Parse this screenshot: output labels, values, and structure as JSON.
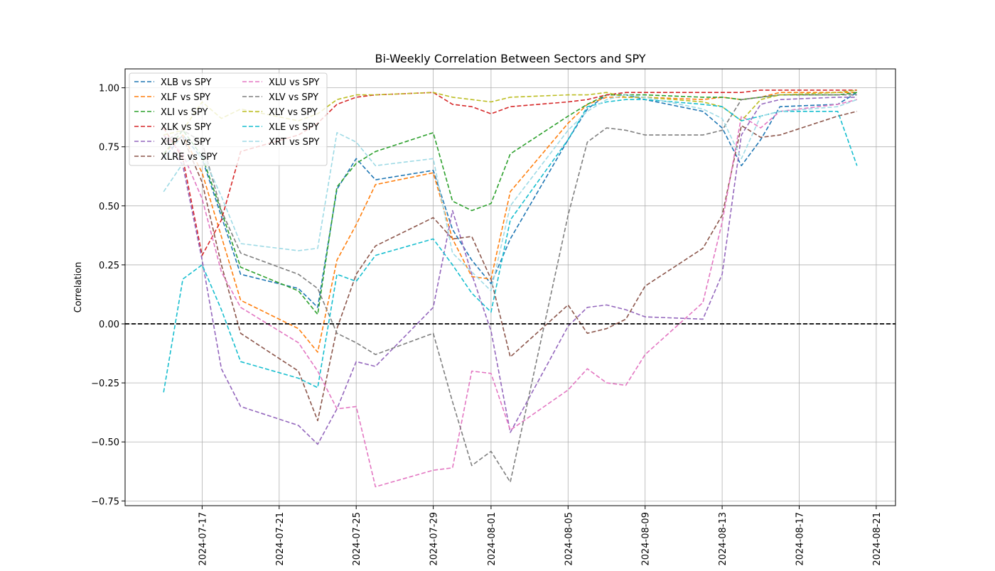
{
  "chart_data": {
    "type": "line",
    "title": "Bi-Weekly Correlation Between Sectors and SPY",
    "xlabel": "",
    "ylabel": "Correlation",
    "grid": true,
    "legend_position": "upper-left",
    "legend_columns": 2,
    "reference_line": {
      "y": 0.0,
      "style": "dashed",
      "color": "#000000"
    },
    "xlim": [
      "2024-07-13",
      "2024-08-22"
    ],
    "ylim": [
      -0.77,
      1.08
    ],
    "x_ticks": [
      "2024-07-17",
      "2024-07-21",
      "2024-07-25",
      "2024-07-29",
      "2024-08-01",
      "2024-08-05",
      "2024-08-09",
      "2024-08-13",
      "2024-08-17",
      "2024-08-21"
    ],
    "y_ticks": [
      "1.00",
      "0.75",
      "0.50",
      "0.25",
      "0.00",
      "−0.25",
      "−0.50",
      "−0.75"
    ],
    "x": [
      "2024-07-15",
      "2024-07-16",
      "2024-07-17",
      "2024-07-18",
      "2024-07-19",
      "2024-07-22",
      "2024-07-23",
      "2024-07-24",
      "2024-07-25",
      "2024-07-26",
      "2024-07-29",
      "2024-07-30",
      "2024-07-31",
      "2024-08-01",
      "2024-08-02",
      "2024-08-05",
      "2024-08-06",
      "2024-08-07",
      "2024-08-08",
      "2024-08-09",
      "2024-08-12",
      "2024-08-13",
      "2024-08-14",
      "2024-08-15",
      "2024-08-16",
      "2024-08-19",
      "2024-08-20"
    ],
    "series": [
      {
        "name": "XLB vs SPY",
        "color": "#1f77b4",
        "values": [
          0.7,
          0.8,
          0.7,
          null,
          0.21,
          0.15,
          0.07,
          0.57,
          0.7,
          0.61,
          0.65,
          0.4,
          0.27,
          0.17,
          0.36,
          0.78,
          0.91,
          0.97,
          0.97,
          0.95,
          0.9,
          0.83,
          0.67,
          0.78,
          0.92,
          0.93,
          0.98
        ]
      },
      {
        "name": "XLF vs SPY",
        "color": "#ff7f0e",
        "values": [
          0.72,
          0.8,
          0.64,
          null,
          0.1,
          -0.02,
          -0.12,
          0.27,
          0.42,
          0.59,
          0.64,
          0.36,
          0.2,
          0.19,
          0.56,
          0.85,
          0.93,
          0.96,
          0.96,
          0.96,
          0.95,
          0.96,
          0.95,
          0.96,
          0.98,
          0.98,
          0.98
        ]
      },
      {
        "name": "XLI vs SPY",
        "color": "#2ca02c",
        "values": [
          0.72,
          0.82,
          0.71,
          null,
          0.24,
          0.14,
          0.04,
          0.58,
          0.68,
          0.73,
          0.81,
          0.52,
          0.48,
          0.51,
          0.72,
          0.88,
          0.93,
          0.97,
          0.97,
          0.97,
          0.96,
          0.96,
          0.95,
          0.96,
          0.97,
          0.97,
          0.98
        ]
      },
      {
        "name": "XLK vs SPY",
        "color": "#d62728",
        "values": [
          0.83,
          0.7,
          0.29,
          0.44,
          0.73,
          0.8,
          0.85,
          0.93,
          0.96,
          0.97,
          0.98,
          0.93,
          0.92,
          0.89,
          0.92,
          0.94,
          0.95,
          0.97,
          0.98,
          0.98,
          0.98,
          0.98,
          0.98,
          0.99,
          0.99,
          0.99,
          0.99
        ]
      },
      {
        "name": "XLP vs SPY",
        "color": "#9467bd",
        "values": [
          0.8,
          0.67,
          0.27,
          -0.19,
          -0.35,
          -0.43,
          -0.51,
          -0.36,
          -0.16,
          -0.18,
          0.07,
          0.48,
          0.21,
          -0.03,
          -0.46,
          -0.01,
          0.07,
          0.08,
          0.06,
          0.03,
          0.02,
          0.21,
          0.8,
          0.93,
          0.95,
          0.96,
          0.96
        ]
      },
      {
        "name": "XLRE vs SPY",
        "color": "#8c564b",
        "values": [
          0.77,
          0.79,
          0.6,
          0.25,
          -0.04,
          -0.2,
          -0.41,
          -0.02,
          0.21,
          0.33,
          0.45,
          0.36,
          0.37,
          0.19,
          -0.14,
          0.08,
          -0.04,
          -0.02,
          0.02,
          0.16,
          0.32,
          0.46,
          0.84,
          0.79,
          0.8,
          0.88,
          0.9
        ]
      },
      {
        "name": "XLU vs SPY",
        "color": "#e377c2",
        "values": [
          0.8,
          0.72,
          0.53,
          0.22,
          0.07,
          -0.08,
          -0.2,
          -0.36,
          -0.35,
          -0.69,
          -0.62,
          -0.61,
          -0.2,
          -0.21,
          -0.45,
          -0.28,
          -0.19,
          -0.25,
          -0.26,
          -0.13,
          0.09,
          0.43,
          0.88,
          0.83,
          0.9,
          0.93,
          0.95
        ]
      },
      {
        "name": "XLV vs SPY",
        "color": "#7f7f7f",
        "values": [
          0.77,
          0.82,
          0.77,
          0.48,
          0.3,
          0.21,
          0.15,
          -0.04,
          -0.08,
          -0.13,
          -0.04,
          -0.33,
          -0.6,
          -0.54,
          -0.67,
          0.46,
          0.77,
          0.83,
          0.82,
          0.8,
          0.8,
          0.82,
          0.95,
          0.96,
          0.97,
          0.97,
          0.97
        ]
      },
      {
        "name": "XLY vs SPY",
        "color": "#bcbd22",
        "values": [
          0.8,
          0.82,
          0.94,
          0.87,
          0.91,
          0.86,
          0.89,
          0.95,
          0.97,
          0.97,
          0.98,
          0.96,
          0.95,
          0.94,
          0.96,
          0.97,
          0.97,
          0.98,
          0.96,
          0.96,
          0.94,
          0.92,
          0.86,
          0.95,
          0.97,
          0.98,
          0.99
        ]
      },
      {
        "name": "XLE vs SPY",
        "color": "#17becf",
        "values": [
          -0.29,
          0.19,
          0.25,
          0.06,
          -0.16,
          -0.23,
          -0.27,
          0.21,
          0.18,
          0.29,
          0.36,
          0.25,
          0.13,
          0.05,
          0.44,
          0.78,
          0.92,
          0.94,
          0.95,
          0.95,
          0.93,
          0.92,
          0.86,
          0.88,
          0.9,
          0.9,
          0.67
        ]
      },
      {
        "name": "XRT vs SPY",
        "color": "#9edae5",
        "values": [
          0.56,
          0.68,
          0.72,
          0.54,
          0.34,
          0.31,
          0.32,
          0.81,
          0.77,
          0.67,
          0.7,
          0.3,
          0.22,
          0.14,
          0.5,
          0.82,
          0.9,
          0.95,
          0.97,
          0.96,
          0.91,
          0.87,
          0.7,
          0.88,
          0.9,
          0.92,
          0.95
        ]
      }
    ]
  }
}
